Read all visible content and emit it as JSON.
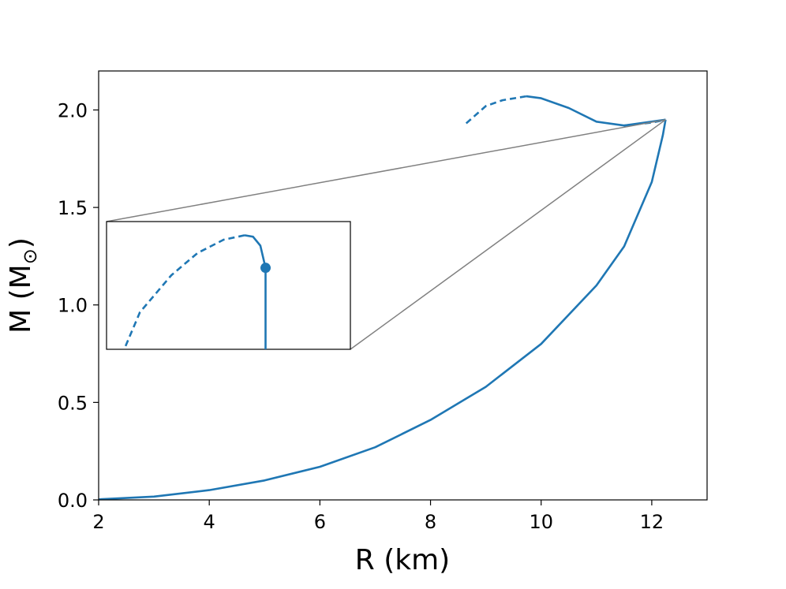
{
  "chart_data": {
    "type": "line",
    "xlabel": "R (km)",
    "ylabel": "M (M",
    "ylabel_subscript": "⊙",
    "xlim": [
      2,
      13
    ],
    "ylim": [
      0,
      2.2
    ],
    "x_ticks": [
      2,
      4,
      6,
      8,
      10,
      12
    ],
    "x_tick_labels": [
      "2",
      "4",
      "6",
      "8",
      "10",
      "12"
    ],
    "y_ticks": [
      0.0,
      0.5,
      1.0,
      1.5,
      2.0
    ],
    "y_tick_labels": [
      "0.0",
      "0.5",
      "1.0",
      "1.5",
      "2.0"
    ],
    "grid": false,
    "color": "#1f77b4",
    "series": [
      {
        "style": "solid",
        "points": [
          [
            2.0,
            0.003
          ],
          [
            3.0,
            0.017
          ],
          [
            4.0,
            0.05
          ],
          [
            5.0,
            0.1
          ],
          [
            6.0,
            0.17
          ],
          [
            7.0,
            0.27
          ],
          [
            8.0,
            0.41
          ],
          [
            9.0,
            0.58
          ],
          [
            10.0,
            0.8
          ],
          [
            11.0,
            1.1
          ],
          [
            11.5,
            1.3
          ],
          [
            12.0,
            1.63
          ],
          [
            12.2,
            1.87
          ],
          [
            12.25,
            1.95
          ]
        ]
      },
      {
        "style": "solid",
        "points": [
          [
            12.25,
            1.95
          ],
          [
            11.5,
            1.92
          ],
          [
            11.0,
            1.94
          ],
          [
            10.5,
            2.01
          ],
          [
            10.0,
            2.06
          ],
          [
            9.73,
            2.07
          ]
        ]
      },
      {
        "style": "dashed",
        "points": [
          [
            9.73,
            2.07
          ],
          [
            9.3,
            2.05
          ],
          [
            9.0,
            2.02
          ],
          [
            8.6,
            1.92
          ]
        ]
      },
      {
        "style": "dashed",
        "points": [
          [
            11.5,
            1.92
          ],
          [
            12.0,
            1.935
          ],
          [
            12.25,
            1.95
          ]
        ]
      }
    ],
    "inset": {
      "zoom_target": [
        12.25,
        1.95
      ],
      "marker_point": [
        12.25,
        1.93
      ],
      "solid_points": [
        [
          12.25,
          1.875
        ],
        [
          12.25,
          1.93
        ],
        [
          12.245,
          1.945
        ],
        [
          12.238,
          1.951
        ],
        [
          12.23,
          1.952
        ]
      ],
      "dashed_points": [
        [
          12.23,
          1.952
        ],
        [
          12.21,
          1.949
        ],
        [
          12.185,
          1.94
        ],
        [
          12.16,
          1.925
        ],
        [
          12.13,
          1.9
        ],
        [
          12.115,
          1.875
        ]
      ]
    }
  }
}
